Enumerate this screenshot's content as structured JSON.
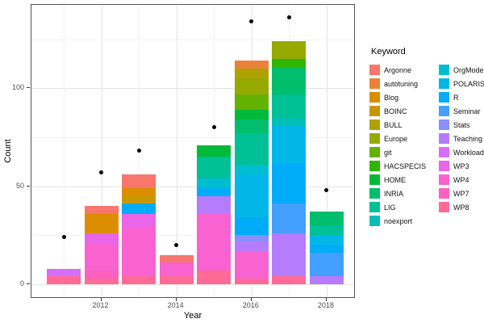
{
  "axes": {
    "x_title": "Year",
    "y_title": "Count",
    "y_tick_labels": [
      "0",
      "50",
      "100"
    ],
    "x_tick_labels": [
      "2012",
      "2014",
      "2016",
      "2018"
    ]
  },
  "legend": {
    "title": "Keyword",
    "column1": [
      "Argonne",
      "autotuning",
      "Blog",
      "BOINC",
      "BULL",
      "Europe",
      "git",
      "HACSPECIS",
      "HOME",
      "INRIA",
      "LIG",
      "noexport"
    ],
    "column2": [
      "OrgMode",
      "POLARIS",
      "R",
      "Seminar",
      "Stats",
      "Teaching",
      "Workload",
      "WP3",
      "WP4",
      "WP7",
      "WP8"
    ]
  },
  "chart_data": {
    "type": "bar",
    "subtype": "stacked-bars-with-scatter-dots",
    "title": "",
    "xlabel": "Year",
    "ylabel": "Count",
    "x": [
      2011,
      2012,
      2013,
      2014,
      2015,
      2016,
      2017,
      2018
    ],
    "x_labeled_ticks": [
      2012,
      2014,
      2016,
      2018
    ],
    "yticks_major": [
      0,
      50,
      100
    ],
    "yticks_minor": [
      25,
      75,
      125
    ],
    "ylim": [
      0,
      142
    ],
    "grid": true,
    "legend_position": "right",
    "legend_title": "Keyword",
    "categories": [
      "Argonne",
      "autotuning",
      "Blog",
      "BOINC",
      "BULL",
      "Europe",
      "git",
      "HACSPECIS",
      "HOME",
      "INRIA",
      "LIG",
      "noexport",
      "OrgMode",
      "POLARIS",
      "R",
      "Seminar",
      "Stats",
      "Teaching",
      "Workload",
      "WP3",
      "WP4",
      "WP7",
      "WP8"
    ],
    "colors": {
      "Argonne": "#F8766D",
      "autotuning": "#EC8239",
      "Blog": "#DB8E00",
      "BOINC": "#C79800",
      "BULL": "#AEA200",
      "Europe": "#95A900",
      "git": "#64B200",
      "HACSPECIS": "#2FB600",
      "HOME": "#00BA38",
      "INRIA": "#00BE6C",
      "LIG": "#00C096",
      "noexport": "#00C0B5",
      "OrgMode": "#00BDD1",
      "POLARIS": "#00B7E7",
      "R": "#00ACF8",
      "Seminar": "#459FFF",
      "Stats": "#8A8EFF",
      "Teaching": "#B57CFF",
      "Workload": "#D56FFB",
      "WP3": "#EA65E7",
      "WP4": "#F862D1",
      "WP7": "#FD61BF",
      "WP8": "#FF6B96"
    },
    "segment_order": "bottom-to-top",
    "bars": [
      {
        "year": 2011,
        "total": 8,
        "segments": [
          [
            "WP8",
            4
          ],
          [
            "Workload",
            4
          ]
        ]
      },
      {
        "year": 2012,
        "total": 40,
        "segments": [
          [
            "WP8",
            3
          ],
          [
            "WP7",
            4
          ],
          [
            "WP4",
            14
          ],
          [
            "WP3",
            5
          ],
          [
            "Blog",
            10
          ],
          [
            "Argonne",
            4
          ]
        ]
      },
      {
        "year": 2013,
        "total": 56,
        "segments": [
          [
            "WP8",
            4
          ],
          [
            "WP4",
            25
          ],
          [
            "WP3",
            7
          ],
          [
            "R",
            5
          ],
          [
            "BOINC",
            4
          ],
          [
            "Blog",
            4
          ],
          [
            "Argonne",
            7
          ]
        ]
      },
      {
        "year": 2014,
        "total": 15,
        "segments": [
          [
            "WP8",
            4
          ],
          [
            "WP4",
            7
          ],
          [
            "Argonne",
            4
          ]
        ]
      },
      {
        "year": 2015,
        "total": 71,
        "segments": [
          [
            "WP8",
            7
          ],
          [
            "WP4",
            29
          ],
          [
            "Teaching",
            9
          ],
          [
            "R",
            4
          ],
          [
            "OrgMode",
            5
          ],
          [
            "LIG",
            11
          ],
          [
            "HOME",
            6
          ]
        ]
      },
      {
        "year": 2016,
        "total": 114,
        "segments": [
          [
            "WP8",
            3
          ],
          [
            "WP4",
            14
          ],
          [
            "Teaching",
            5
          ],
          [
            "Stats",
            3
          ],
          [
            "R",
            9
          ],
          [
            "POLARIS",
            22
          ],
          [
            "OrgMode",
            5
          ],
          [
            "LIG",
            16
          ],
          [
            "INRIA",
            7
          ],
          [
            "HOME",
            5
          ],
          [
            "git",
            8
          ],
          [
            "Europe",
            8
          ],
          [
            "BULL",
            5
          ],
          [
            "autotuning",
            4
          ]
        ]
      },
      {
        "year": 2017,
        "total": 124,
        "segments": [
          [
            "WP8",
            4
          ],
          [
            "Teaching",
            22
          ],
          [
            "Seminar",
            15
          ],
          [
            "R",
            21
          ],
          [
            "POLARIS",
            19
          ],
          [
            "noexport",
            4
          ],
          [
            "LIG",
            12
          ],
          [
            "INRIA",
            14
          ],
          [
            "HACSPECIS",
            4
          ],
          [
            "Europe",
            9
          ]
        ]
      },
      {
        "year": 2018,
        "total": 37,
        "segments": [
          [
            "Teaching",
            4
          ],
          [
            "Seminar",
            12
          ],
          [
            "R",
            4
          ],
          [
            "POLARIS",
            5
          ],
          [
            "LIG",
            5
          ],
          [
            "INRIA",
            7
          ]
        ]
      }
    ],
    "points": [
      {
        "year": 2011,
        "value": 24
      },
      {
        "year": 2012,
        "value": 57
      },
      {
        "year": 2013,
        "value": 68
      },
      {
        "year": 2014,
        "value": 20
      },
      {
        "year": 2015,
        "value": 80
      },
      {
        "year": 2016,
        "value": 134
      },
      {
        "year": 2017,
        "value": 136
      },
      {
        "year": 2018,
        "value": 48
      }
    ]
  }
}
